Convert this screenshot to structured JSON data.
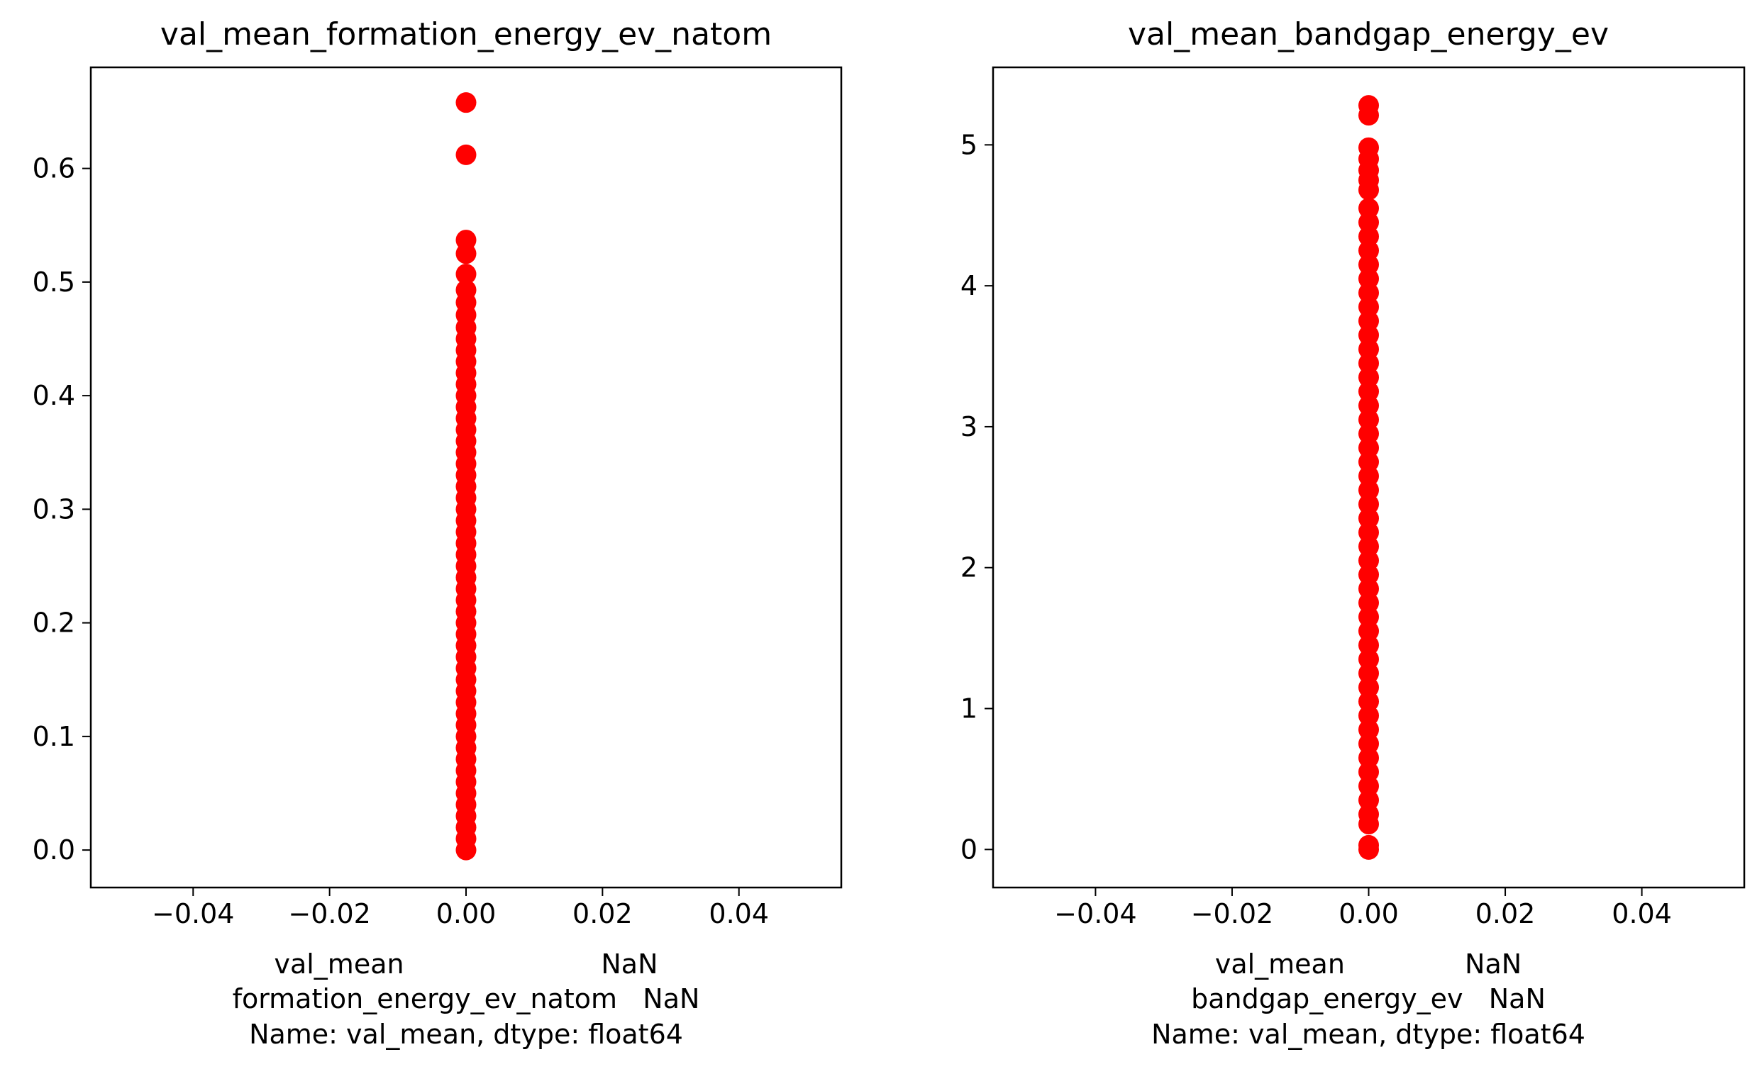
{
  "chart_data": [
    {
      "type": "scatter",
      "title": "val_mean_formation_energy_ev_natom",
      "xlabel_lines": [
        "val_mean                       NaN",
        "formation_energy_ev_natom   NaN",
        "Name: val_mean, dtype: float64"
      ],
      "ylabel": "",
      "xlim": [
        -0.055,
        0.055
      ],
      "ylim": [
        -0.033,
        0.689
      ],
      "xticks": [
        -0.04,
        -0.02,
        0.0,
        0.02,
        0.04
      ],
      "xtick_labels": [
        "−0.04",
        "−0.02",
        "0.00",
        "0.02",
        "0.04"
      ],
      "yticks": [
        0.0,
        0.1,
        0.2,
        0.3,
        0.4,
        0.5,
        0.6
      ],
      "ytick_labels": [
        "0.0",
        "0.1",
        "0.2",
        "0.3",
        "0.4",
        "0.5",
        "0.6"
      ],
      "grid": false,
      "marker_color": "#ff0000",
      "series": [
        {
          "x_all": 0.0,
          "y": [
            0.658,
            0.612,
            0.537,
            0.525,
            0.507,
            0.493,
            0.482,
            0.471,
            0.46,
            0.45,
            0.44,
            0.43,
            0.42,
            0.41,
            0.4,
            0.39,
            0.38,
            0.37,
            0.36,
            0.35,
            0.34,
            0.33,
            0.32,
            0.31,
            0.3,
            0.29,
            0.28,
            0.27,
            0.26,
            0.25,
            0.24,
            0.23,
            0.22,
            0.21,
            0.2,
            0.19,
            0.18,
            0.17,
            0.16,
            0.15,
            0.14,
            0.13,
            0.12,
            0.11,
            0.1,
            0.09,
            0.08,
            0.07,
            0.06,
            0.05,
            0.04,
            0.03,
            0.02,
            0.01,
            0.0
          ]
        }
      ]
    },
    {
      "type": "scatter",
      "title": "val_mean_bandgap_energy_ev",
      "xlabel_lines": [
        "val_mean              NaN",
        "bandgap_energy_ev   NaN",
        "Name: val_mean, dtype: float64"
      ],
      "ylabel": "",
      "xlim": [
        -0.055,
        0.055
      ],
      "ylim": [
        -0.27,
        5.55
      ],
      "xticks": [
        -0.04,
        -0.02,
        0.0,
        0.02,
        0.04
      ],
      "xtick_labels": [
        "−0.04",
        "−0.02",
        "0.00",
        "0.02",
        "0.04"
      ],
      "yticks": [
        0,
        1,
        2,
        3,
        4,
        5
      ],
      "ytick_labels": [
        "0",
        "1",
        "2",
        "3",
        "4",
        "5"
      ],
      "grid": false,
      "marker_color": "#ff0000",
      "series": [
        {
          "x_all": 0.0,
          "y": [
            5.28,
            5.21,
            4.98,
            4.9,
            4.82,
            4.75,
            4.68,
            4.55,
            4.45,
            4.35,
            4.25,
            4.15,
            4.05,
            3.95,
            3.85,
            3.75,
            3.65,
            3.55,
            3.45,
            3.35,
            3.25,
            3.15,
            3.05,
            2.95,
            2.85,
            2.75,
            2.65,
            2.55,
            2.45,
            2.35,
            2.25,
            2.15,
            2.05,
            1.95,
            1.85,
            1.75,
            1.65,
            1.55,
            1.45,
            1.35,
            1.25,
            1.15,
            1.05,
            0.95,
            0.85,
            0.75,
            0.65,
            0.55,
            0.45,
            0.35,
            0.25,
            0.18,
            0.03,
            0.0
          ]
        }
      ]
    }
  ]
}
